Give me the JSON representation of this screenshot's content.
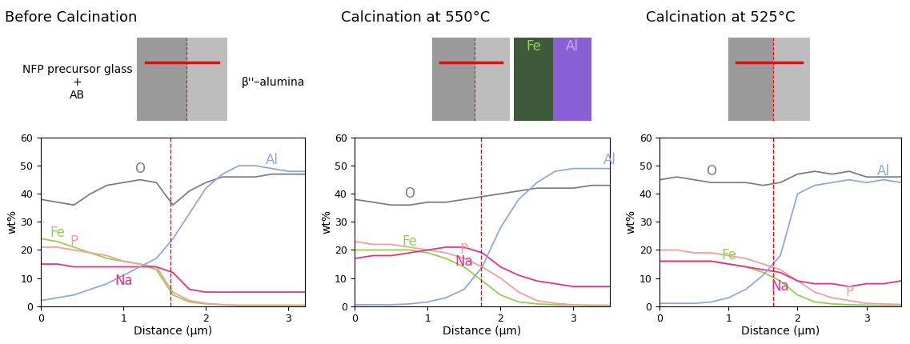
{
  "chart_data": [
    {
      "type": "line",
      "title": "Before Calcination",
      "x_label": "Distance (μm)",
      "y_label": "wt%",
      "x": [
        0,
        0.2,
        0.4,
        0.6,
        0.8,
        1.0,
        1.2,
        1.4,
        1.6,
        1.8,
        2.0,
        2.2,
        2.4,
        2.6,
        2.8,
        3.0,
        3.2
      ],
      "series": [
        {
          "name": "O",
          "color": "#7f7f7f",
          "values": [
            38,
            37,
            36,
            40,
            43,
            44,
            45,
            44,
            36,
            41,
            44,
            46,
            46,
            46,
            47,
            47,
            47
          ]
        },
        {
          "name": "Fe",
          "color": "#92d050",
          "values": [
            24,
            23,
            21,
            19,
            17,
            16,
            15,
            13,
            4,
            1.5,
            0.8,
            0.5,
            0.3,
            0.3,
            0.3,
            0.3,
            0.3
          ]
        },
        {
          "name": "P",
          "color": "#f4a09a",
          "values": [
            21,
            21,
            20,
            19,
            18,
            16,
            15,
            14,
            5,
            2,
            1,
            0.5,
            0.3,
            0.3,
            0.3,
            0.3,
            0.3
          ]
        },
        {
          "name": "Na",
          "color": "#e6338a",
          "values": [
            15,
            15,
            14,
            14,
            14,
            14,
            14,
            14,
            12,
            6,
            5,
            5,
            5,
            5,
            5,
            5,
            5
          ]
        },
        {
          "name": "Al",
          "color": "#8eaadb",
          "values": [
            2,
            3,
            4,
            6,
            8,
            11,
            14,
            17,
            24,
            33,
            42,
            47,
            50,
            50,
            49,
            48,
            48
          ]
        }
      ],
      "xlim": [
        0,
        3.2
      ],
      "xticks": [
        0,
        1,
        2,
        3
      ],
      "ylim": [
        0,
        60
      ],
      "yticks": [
        0,
        10,
        20,
        30,
        40,
        50,
        60
      ],
      "reference_line": 1.57,
      "annotations": [
        "NFP precursor glass\n+\nAB",
        "β''–alumina"
      ]
    },
    {
      "type": "line",
      "title": "Calcination at 550°C",
      "x_label": "Distance (μm)",
      "y_label": "wt%",
      "x": [
        0,
        0.25,
        0.5,
        0.75,
        1.0,
        1.25,
        1.5,
        1.75,
        2.0,
        2.25,
        2.5,
        2.75,
        3.0,
        3.25,
        3.5
      ],
      "series": [
        {
          "name": "O",
          "color": "#7f7f7f",
          "values": [
            38,
            37,
            36,
            36,
            37,
            37,
            38,
            39,
            40,
            41,
            42,
            42,
            42,
            43,
            43
          ]
        },
        {
          "name": "Fe",
          "color": "#92d050",
          "values": [
            20,
            20,
            20,
            20,
            19,
            17,
            14,
            9,
            4,
            1.5,
            0.8,
            0.5,
            0.4,
            0.3,
            0.3
          ]
        },
        {
          "name": "P",
          "color": "#f4a09a",
          "values": [
            23,
            22,
            22,
            21,
            20,
            19,
            17,
            14,
            10,
            5,
            2,
            1,
            0.5,
            0.3,
            0.3
          ]
        },
        {
          "name": "Na",
          "color": "#e6338a",
          "values": [
            17,
            18,
            18,
            19,
            20,
            21,
            21,
            19,
            14,
            11,
            9,
            8,
            7,
            7,
            7
          ]
        },
        {
          "name": "Al",
          "color": "#8eaadb",
          "values": [
            0.5,
            0.5,
            0.5,
            0.8,
            1.5,
            3,
            6,
            14,
            28,
            38,
            44,
            48,
            49,
            49,
            49
          ]
        }
      ],
      "xlim": [
        0,
        3.5
      ],
      "xticks": [
        0,
        1,
        2,
        3
      ],
      "ylim": [
        0,
        60
      ],
      "yticks": [
        0,
        10,
        20,
        30,
        40,
        50,
        60
      ],
      "reference_line": 1.73,
      "annotations": [
        "Fe",
        "Al"
      ]
    },
    {
      "type": "line",
      "title": "Calcination at 525°C",
      "x_label": "Distance (μm)",
      "y_label": "wt%",
      "x": [
        0,
        0.25,
        0.5,
        0.75,
        1.0,
        1.25,
        1.5,
        1.75,
        2.0,
        2.25,
        2.5,
        2.75,
        3.0,
        3.25,
        3.5
      ],
      "series": [
        {
          "name": "O",
          "color": "#7f7f7f",
          "values": [
            45,
            46,
            45,
            44,
            44,
            44,
            43,
            44,
            47,
            48,
            47,
            48,
            46,
            46,
            46
          ]
        },
        {
          "name": "Fe",
          "color": "#92d050",
          "values": [
            16,
            16,
            16,
            16,
            15,
            14,
            12,
            9,
            4,
            1.5,
            0.8,
            0.5,
            0.4,
            0.3,
            0.3
          ]
        },
        {
          "name": "P",
          "color": "#f4a09a",
          "values": [
            20,
            20,
            19,
            19,
            18,
            17,
            15,
            13,
            9,
            5,
            3,
            2,
            1,
            0.8,
            0.6
          ]
        },
        {
          "name": "Na",
          "color": "#e6338a",
          "values": [
            16,
            16,
            16,
            16,
            15,
            14,
            13,
            12,
            9,
            8,
            8,
            7,
            8,
            8,
            9
          ]
        },
        {
          "name": "Al",
          "color": "#8eaadb",
          "values": [
            1,
            1,
            1,
            1.5,
            3,
            6,
            11,
            18,
            40,
            43,
            44,
            45,
            44,
            45,
            44
          ]
        }
      ],
      "xlim": [
        0,
        3.5
      ],
      "xticks": [
        0,
        1,
        2,
        3
      ],
      "ylim": [
        0,
        60
      ],
      "yticks": [
        0,
        10,
        20,
        30,
        40,
        50,
        60
      ],
      "reference_line": 1.65,
      "annotations": []
    }
  ]
}
